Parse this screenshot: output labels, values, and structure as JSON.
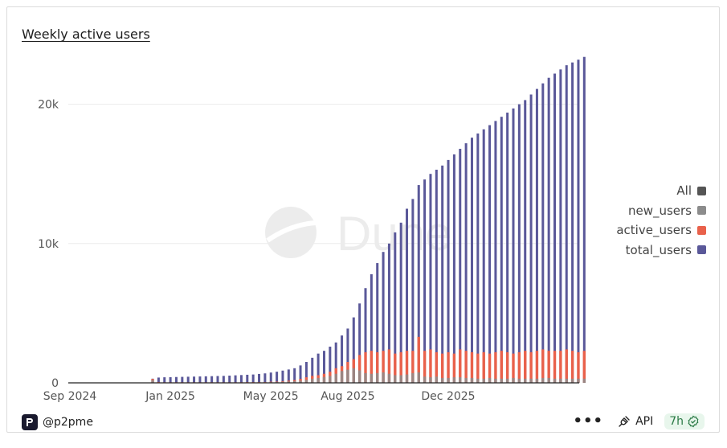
{
  "header": {
    "title": "Weekly active users"
  },
  "footer": {
    "author": "@p2pme",
    "api_label": "API",
    "refresh": "7h",
    "more_label": "•••"
  },
  "watermark": "Dune",
  "colors": {
    "new_users": "#8c8c8c",
    "active_users": "#e9614b",
    "total_users": "#5a5899",
    "all": "#555555"
  },
  "legend": [
    {
      "label": "All",
      "key": "all"
    },
    {
      "label": "new_users",
      "key": "new_users"
    },
    {
      "label": "active_users",
      "key": "active_users"
    },
    {
      "label": "total_users",
      "key": "total_users"
    }
  ],
  "chart_data": {
    "type": "bar",
    "title": "Weekly active users",
    "xlabel": "",
    "ylabel": "",
    "ylim": [
      0,
      23500
    ],
    "yticks": [
      0,
      10000,
      20000
    ],
    "ytick_labels": [
      "0",
      "10k",
      "20k"
    ],
    "xticks": [
      {
        "label": "Sep 2024",
        "index": 0
      },
      {
        "label": "Jan 2025",
        "index": 17
      },
      {
        "label": "May 2025",
        "index": 34
      },
      {
        "label": "Aug 2025",
        "index": 47
      },
      {
        "label": "Dec 2025",
        "index": 64
      }
    ],
    "series": [
      {
        "name": "total_users",
        "values": [
          20,
          20,
          20,
          20,
          20,
          20,
          20,
          20,
          20,
          20,
          20,
          20,
          20,
          20,
          300,
          380,
          400,
          410,
          420,
          430,
          440,
          450,
          460,
          470,
          480,
          490,
          500,
          520,
          540,
          560,
          580,
          600,
          640,
          680,
          740,
          800,
          880,
          960,
          1050,
          1250,
          1500,
          1800,
          2100,
          2300,
          2600,
          2900,
          3400,
          3900,
          4700,
          5700,
          6800,
          7800,
          8600,
          9400,
          10000,
          10800,
          11500,
          12500,
          13200,
          14200,
          14600,
          15000,
          15300,
          15600,
          16000,
          16400,
          16800,
          17200,
          17600,
          17900,
          18200,
          18500,
          18800,
          19100,
          19400,
          19700,
          20000,
          20300,
          20700,
          21100,
          21500,
          21900,
          22200,
          22500,
          22800,
          23000,
          23200,
          23400
        ]
      },
      {
        "name": "active_users",
        "values": [
          0,
          0,
          0,
          0,
          0,
          0,
          0,
          0,
          0,
          0,
          0,
          0,
          0,
          0,
          280,
          60,
          40,
          40,
          40,
          40,
          40,
          40,
          40,
          40,
          40,
          40,
          40,
          40,
          40,
          40,
          50,
          50,
          60,
          60,
          80,
          90,
          120,
          160,
          200,
          280,
          400,
          500,
          550,
          650,
          800,
          1050,
          1200,
          1500,
          1700,
          2000,
          2200,
          2300,
          2200,
          2300,
          2400,
          2100,
          2200,
          2300,
          2300,
          3300,
          2300,
          2400,
          2200,
          2100,
          2200,
          2100,
          2400,
          2300,
          2200,
          2100,
          2200,
          2100,
          2200,
          2300,
          2200,
          2100,
          2200,
          2300,
          2200,
          2300,
          2400,
          2300,
          2300,
          2300,
          2400,
          2300,
          2200,
          2300
        ]
      },
      {
        "name": "new_users",
        "values": [
          0,
          0,
          0,
          0,
          0,
          0,
          0,
          0,
          0,
          0,
          0,
          0,
          0,
          0,
          200,
          30,
          20,
          20,
          20,
          20,
          20,
          20,
          20,
          20,
          20,
          20,
          20,
          20,
          20,
          20,
          30,
          30,
          40,
          40,
          50,
          60,
          80,
          100,
          120,
          160,
          220,
          300,
          350,
          420,
          500,
          650,
          850,
          950,
          1050,
          900,
          700,
          650,
          700,
          750,
          650,
          550,
          550,
          600,
          700,
          750,
          450,
          400,
          450,
          350,
          350,
          400,
          400,
          350,
          350,
          300,
          300,
          350,
          300,
          300,
          300,
          350,
          300,
          300,
          300,
          300,
          350,
          350,
          300,
          300,
          300,
          300,
          300,
          300
        ]
      }
    ]
  }
}
